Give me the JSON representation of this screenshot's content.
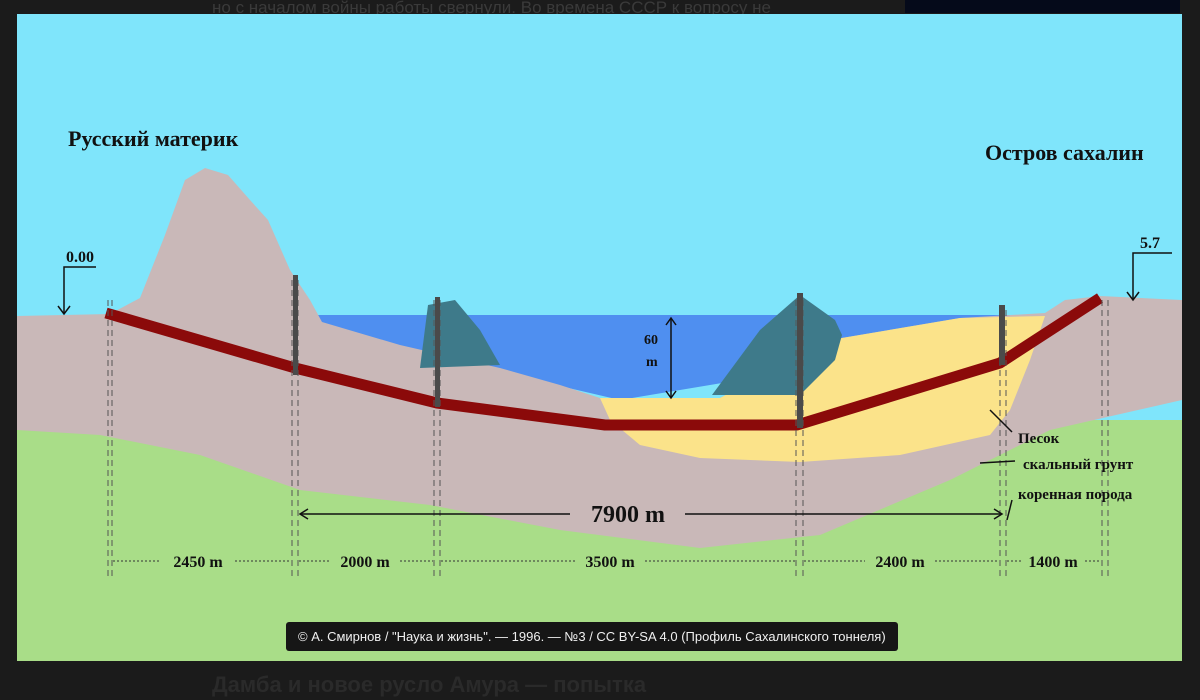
{
  "background_page": {
    "text_top": "но с началом войны работы свернули. Во времена СССР к вопросу не",
    "text_bottom": "Дамба и новое русло Амура — попытка"
  },
  "diagram": {
    "label_left": "Русский материк",
    "label_right": "Остров сахалин",
    "elevation_left": "0.00",
    "elevation_right": "5.7",
    "depth_value": "60",
    "depth_unit": "m",
    "total_length": "7900 m",
    "legend": {
      "sand": "Песок",
      "rock": "скальный грунт",
      "bedrock": "коренная порода"
    },
    "segments": [
      "2450 m",
      "2000 m",
      "3500 m",
      "2400 m",
      "1400 m"
    ],
    "colors": {
      "sky": "#7fe5fb",
      "land": "#c9b8b8",
      "water": "#4f8ff0",
      "sand": "#fbe38a",
      "bedrock": "#a9dd88",
      "tunnel": "#8b0a0a",
      "rock": "#3e7a8a"
    }
  },
  "caption": "© А. Смирнов / \"Наука и жизнь\". — 1996. — №3 / CC BY-SA 4.0 (Профиль Сахалинского тоннеля)"
}
